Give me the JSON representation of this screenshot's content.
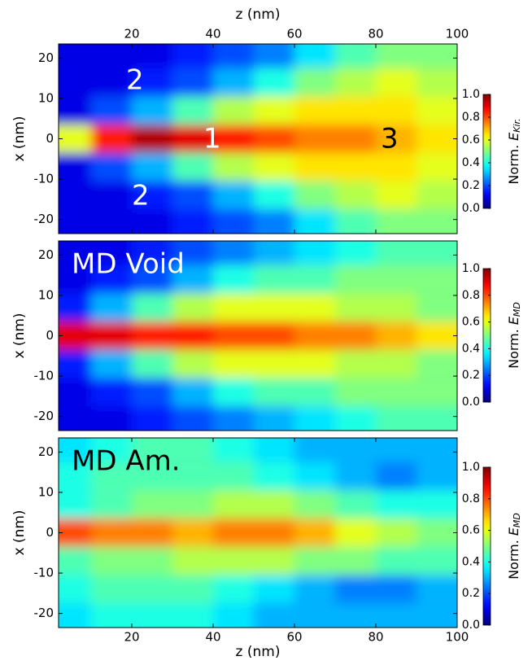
{
  "chart_data": [
    {
      "type": "heatmap",
      "colormap": "jet",
      "xlabel": "z (nm)",
      "ylabel": "x (nm)",
      "xlim": [
        2,
        100
      ],
      "ylim": [
        -23.5,
        23.5
      ],
      "xticks": [
        20,
        40,
        60,
        80,
        100
      ],
      "yticks": [
        -20,
        -10,
        0,
        10,
        20
      ],
      "x": [
        5,
        15,
        25,
        35,
        45,
        55,
        65,
        75,
        85,
        95
      ],
      "y": [
        21,
        14,
        7,
        0,
        -7,
        -14,
        -21
      ],
      "values": [
        [
          0.1,
          0.1,
          0.1,
          0.15,
          0.2,
          0.25,
          0.35,
          0.45,
          0.5,
          0.5
        ],
        [
          0.1,
          0.1,
          0.15,
          0.2,
          0.3,
          0.4,
          0.5,
          0.55,
          0.6,
          0.55
        ],
        [
          0.1,
          0.2,
          0.3,
          0.45,
          0.55,
          0.6,
          0.65,
          0.65,
          0.65,
          0.6
        ],
        [
          0.6,
          0.85,
          0.95,
          0.9,
          0.85,
          0.8,
          0.75,
          0.75,
          0.7,
          0.65
        ],
        [
          0.1,
          0.2,
          0.3,
          0.45,
          0.55,
          0.6,
          0.65,
          0.65,
          0.65,
          0.6
        ],
        [
          0.1,
          0.1,
          0.15,
          0.2,
          0.3,
          0.4,
          0.5,
          0.55,
          0.6,
          0.55
        ],
        [
          0.1,
          0.1,
          0.1,
          0.15,
          0.2,
          0.25,
          0.35,
          0.45,
          0.5,
          0.5
        ]
      ],
      "colorbar_label": "Norm.",
      "colorbar_symbol": "E",
      "colorbar_subscript": "Kir.",
      "clim": [
        0,
        1
      ],
      "cticks": [
        {
          "value": 0,
          "label": "0.0"
        },
        {
          "value": 0.2,
          "label": "0.2"
        },
        {
          "value": 0.4,
          "label": "0.4"
        },
        {
          "value": 0.6,
          "label": "0.6"
        },
        {
          "value": 0.8,
          "label": "0.8"
        },
        {
          "value": 1,
          "label": "1.0"
        }
      ],
      "annotations": [
        "2",
        "1",
        "3",
        "2"
      ]
    },
    {
      "type": "heatmap",
      "colormap": "jet",
      "ylabel": "x (nm)",
      "xlim": [
        2,
        100
      ],
      "ylim": [
        -23.5,
        23.5
      ],
      "yticks": [
        -20,
        -10,
        0,
        10,
        20
      ],
      "x": [
        5,
        15,
        25,
        35,
        45,
        55,
        65,
        75,
        85,
        95
      ],
      "y": [
        21,
        14,
        7,
        0,
        -7,
        -14,
        -21
      ],
      "values": [
        [
          0.1,
          0.1,
          0.15,
          0.2,
          0.25,
          0.3,
          0.35,
          0.4,
          0.45,
          0.45
        ],
        [
          0.1,
          0.15,
          0.2,
          0.3,
          0.4,
          0.45,
          0.45,
          0.5,
          0.5,
          0.5
        ],
        [
          0.15,
          0.3,
          0.45,
          0.55,
          0.6,
          0.6,
          0.6,
          0.55,
          0.55,
          0.5
        ],
        [
          0.9,
          0.9,
          0.85,
          0.85,
          0.8,
          0.8,
          0.75,
          0.75,
          0.7,
          0.65
        ],
        [
          0.15,
          0.3,
          0.45,
          0.55,
          0.6,
          0.6,
          0.6,
          0.55,
          0.55,
          0.5
        ],
        [
          0.1,
          0.15,
          0.2,
          0.3,
          0.4,
          0.45,
          0.45,
          0.5,
          0.5,
          0.5
        ],
        [
          0.1,
          0.1,
          0.15,
          0.2,
          0.25,
          0.3,
          0.35,
          0.4,
          0.45,
          0.45
        ]
      ],
      "colorbar_label": "Norm.",
      "colorbar_symbol": "E",
      "colorbar_subscript": "MD",
      "clim": [
        0,
        1
      ],
      "cticks": [
        {
          "value": 0,
          "label": "0.0"
        },
        {
          "value": 0.2,
          "label": "0.2"
        },
        {
          "value": 0.4,
          "label": "0.4"
        },
        {
          "value": 0.6,
          "label": "0.6"
        },
        {
          "value": 0.8,
          "label": "0.8"
        },
        {
          "value": 1,
          "label": "1.0"
        }
      ],
      "annotations": [
        "MD Void"
      ]
    },
    {
      "type": "heatmap",
      "colormap": "jet",
      "xlabel": "z (nm)",
      "ylabel": "x (nm)",
      "xlim": [
        2,
        100
      ],
      "ylim": [
        -23.5,
        23.5
      ],
      "xticks": [
        20,
        40,
        60,
        80,
        100
      ],
      "yticks": [
        -20,
        -10,
        0,
        10,
        20
      ],
      "x": [
        5,
        15,
        25,
        35,
        45,
        55,
        65,
        75,
        85,
        95
      ],
      "y": [
        21,
        14,
        7,
        0,
        -7,
        -14,
        -21
      ],
      "values": [
        [
          0.35,
          0.4,
          0.45,
          0.45,
          0.4,
          0.35,
          0.3,
          0.3,
          0.3,
          0.3
        ],
        [
          0.4,
          0.45,
          0.45,
          0.45,
          0.45,
          0.4,
          0.35,
          0.3,
          0.25,
          0.3
        ],
        [
          0.4,
          0.45,
          0.5,
          0.5,
          0.55,
          0.55,
          0.5,
          0.45,
          0.4,
          0.4
        ],
        [
          0.8,
          0.75,
          0.75,
          0.7,
          0.75,
          0.75,
          0.7,
          0.6,
          0.55,
          0.5
        ],
        [
          0.45,
          0.5,
          0.5,
          0.55,
          0.55,
          0.55,
          0.5,
          0.5,
          0.45,
          0.45
        ],
        [
          0.4,
          0.45,
          0.45,
          0.45,
          0.4,
          0.35,
          0.3,
          0.25,
          0.25,
          0.3
        ],
        [
          0.35,
          0.4,
          0.4,
          0.4,
          0.35,
          0.3,
          0.3,
          0.3,
          0.3,
          0.3
        ]
      ],
      "colorbar_label": "Norm.",
      "colorbar_symbol": "E",
      "colorbar_subscript": "MD",
      "clim": [
        0,
        1
      ],
      "cticks": [
        {
          "value": 0,
          "label": "0.0"
        },
        {
          "value": 0.2,
          "label": "0.2"
        },
        {
          "value": 0.4,
          "label": "0.4"
        },
        {
          "value": 0.6,
          "label": "0.6"
        },
        {
          "value": 0.8,
          "label": "0.8"
        },
        {
          "value": 1,
          "label": "1.0"
        }
      ],
      "annotations": [
        "MD Am."
      ]
    }
  ]
}
